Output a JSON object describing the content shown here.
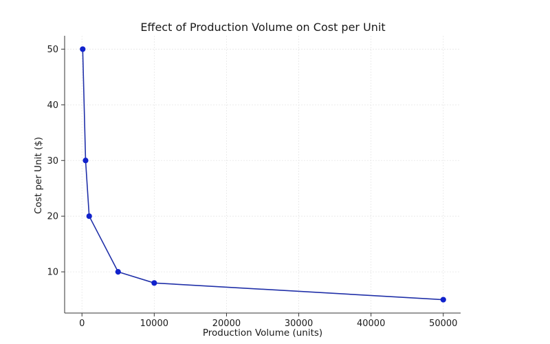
{
  "chart_data": {
    "type": "line",
    "title": "Effect of Production Volume on Cost per Unit",
    "xlabel": "Production Volume (units)",
    "ylabel": "Cost per Unit ($)",
    "x": [
      100,
      500,
      1000,
      5000,
      10000,
      50000
    ],
    "series": [
      {
        "values": [
          50,
          30,
          20,
          10,
          8,
          5
        ]
      }
    ],
    "xlim": [
      -2400,
      52400
    ],
    "ylim": [
      2.6,
      52.4
    ],
    "xticks": [
      0,
      10000,
      20000,
      30000,
      40000,
      50000
    ],
    "xtick_labels": [
      "0",
      "10000",
      "20000",
      "30000",
      "40000",
      "50000"
    ],
    "yticks": [
      10,
      20,
      30,
      40,
      50
    ],
    "ytick_labels": [
      "10",
      "20",
      "30",
      "40",
      "50"
    ],
    "grid": true,
    "line_color": "#1f2fa8",
    "marker_color": "#1122cc"
  }
}
